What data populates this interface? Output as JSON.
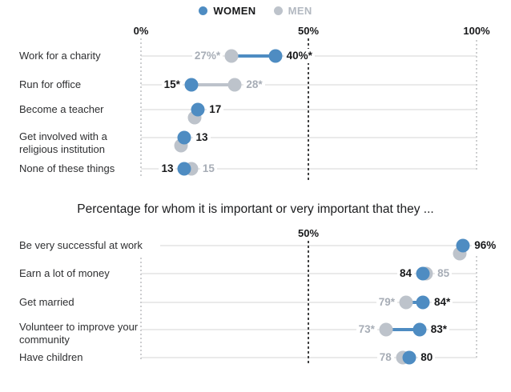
{
  "legend": {
    "women_label": "WOMEN",
    "men_label": "MEN"
  },
  "colors": {
    "women": "#4e8cc2",
    "men": "#bdc3cb",
    "men_text": "#a7adb6",
    "women_text": "#17181a",
    "track": "#eaeaea",
    "grid_light": "#cdced0",
    "grid_dark": "#414243"
  },
  "chart_data": [
    {
      "type": "dumbbell",
      "title": "",
      "series_names": [
        "WOMEN",
        "MEN"
      ],
      "axis_ticks": [
        "0%",
        "50%",
        "100%"
      ],
      "xlim": [
        0,
        100
      ],
      "units": "%",
      "legend_position": "top-center",
      "grid": "dotted vertical lines at 0, 50, 100",
      "rows": [
        {
          "category": "Work for a charity",
          "women": 40,
          "men": 27,
          "women_label": "40%*",
          "men_label": "27%*"
        },
        {
          "category": "Run for office",
          "women": 15,
          "men": 28,
          "women_label": "15*",
          "men_label": "28*"
        },
        {
          "category": "Become a teacher",
          "women": 17,
          "men": 16,
          "women_label": "17",
          "men_label": ""
        },
        {
          "category": "Get involved with a religious institution",
          "women": 13,
          "men": 12,
          "women_label": "13",
          "men_label": ""
        },
        {
          "category": "None of these things",
          "women": 13,
          "men": 15,
          "women_label": "13",
          "men_label": "15"
        }
      ]
    },
    {
      "type": "dumbbell",
      "title": "Percentage for whom it is important or very important that they ...",
      "series_names": [
        "WOMEN",
        "MEN"
      ],
      "axis_ticks": [
        "50%"
      ],
      "xlim": [
        0,
        100
      ],
      "units": "%",
      "grid": "dotted vertical lines at 0, 50, 100",
      "rows": [
        {
          "category": "Be very successful at work",
          "women": 96,
          "men": 95,
          "women_label": "96%",
          "men_label": ""
        },
        {
          "category": "Earn a lot of money",
          "women": 84,
          "men": 85,
          "women_label": "84",
          "men_label": "85"
        },
        {
          "category": "Get married",
          "women": 84,
          "men": 79,
          "women_label": "84*",
          "men_label": "79*"
        },
        {
          "category": "Volunteer to improve your community",
          "women": 83,
          "men": 73,
          "women_label": "83*",
          "men_label": "73*"
        },
        {
          "category": "Have children",
          "women": 80,
          "men": 78,
          "women_label": "80",
          "men_label": "78"
        }
      ]
    }
  ]
}
